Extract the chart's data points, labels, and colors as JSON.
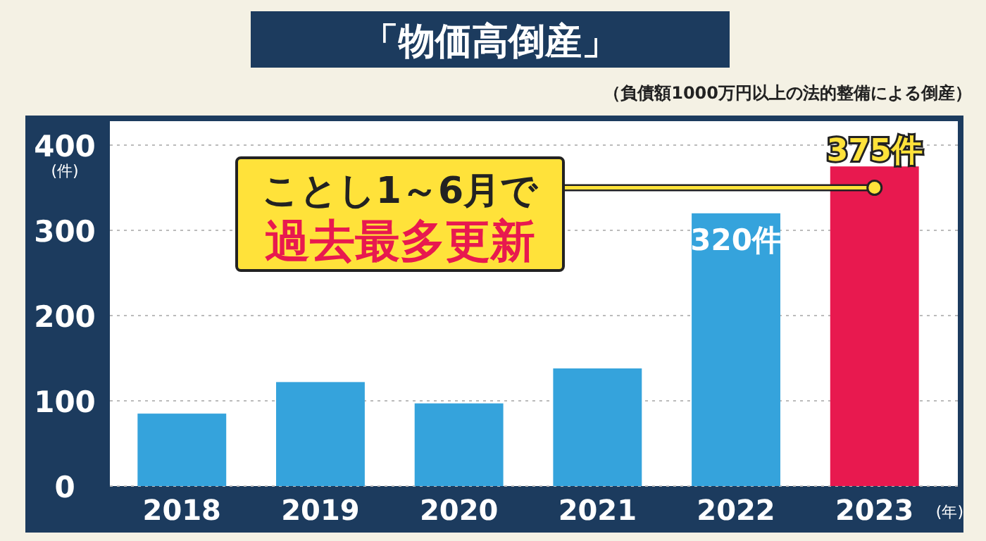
{
  "chart_data": {
    "type": "bar",
    "title": "「物価高倒産」",
    "subtitle": "（負債額1000万円以上の法的整備による倒産）",
    "ylabel": "(件)",
    "xlabel": "(年)",
    "categories": [
      "2018",
      "2019",
      "2020",
      "2021",
      "2022",
      "2023"
    ],
    "values": [
      85,
      122,
      97,
      138,
      320,
      375
    ],
    "colors": [
      "#35a3dc",
      "#35a3dc",
      "#35a3dc",
      "#35a3dc",
      "#35a3dc",
      "#e8194f"
    ],
    "value_labels": [
      null,
      null,
      null,
      null,
      "320件",
      "375件"
    ],
    "ylim": [
      0,
      400
    ],
    "yticks": [
      0,
      100,
      200,
      300,
      400
    ],
    "grid": "y",
    "annotations": [
      {
        "text": "ことし1～6月で",
        "x": "2023",
        "y": 350
      },
      "過去最多更新"
    ]
  }
}
